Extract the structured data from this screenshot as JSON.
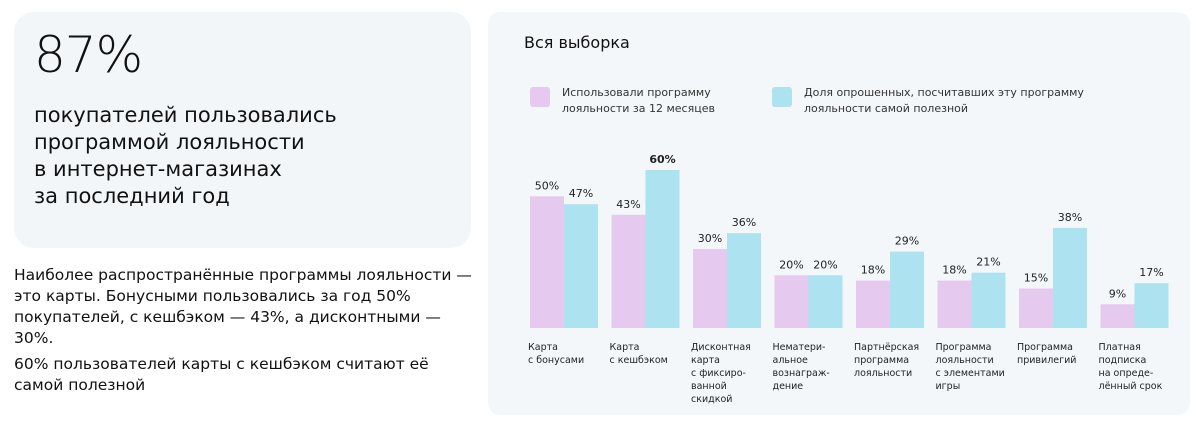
{
  "headline": {
    "value": "87%",
    "text": "покупателей пользовались\nпрограммой лояльности\nв интернет-магазинах\nза последний год"
  },
  "paragraphs": [
    "Наиболее распространённые программы лояльности — это карты. Бонусными пользовались за год 50% покупателей, с кешбэком — 43%, а дисконтными — 30%.",
    "60% пользователей карты с кешбэком считают её самой полезной"
  ],
  "chart_data": {
    "type": "bar",
    "title": "Вся выборка",
    "categories": [
      "Карта\nс бонусами",
      "Карта\nс кешбэком",
      "Дисконтная\nкарта\nс фиксиро-\nванной скидкой",
      "Нематери-\nальное\nвознаграж-\nдение",
      "Партнёрская\nпрограмма\nлояльности",
      "Программа\nлояльности\nс элементами\nигры",
      "Программа\nпривилегий",
      "Платная\nподписка\nна опреде-\nлённый срок"
    ],
    "series": [
      {
        "name": "Использовали программу лояльности за 12 месяцев",
        "color": "#e6c9ee",
        "values": [
          50,
          43,
          30,
          20,
          18,
          18,
          15,
          9
        ]
      },
      {
        "name": "Доля опрошенных, посчитавших эту программу лояльности самой полезной",
        "color": "#ade2f0",
        "values": [
          47,
          60,
          36,
          20,
          29,
          21,
          38,
          17
        ]
      }
    ],
    "value_suffix": "%",
    "highlighted": {
      "series": 1,
      "index": 1
    },
    "ylim": [
      0,
      60
    ],
    "grid": false,
    "legend": "top"
  }
}
